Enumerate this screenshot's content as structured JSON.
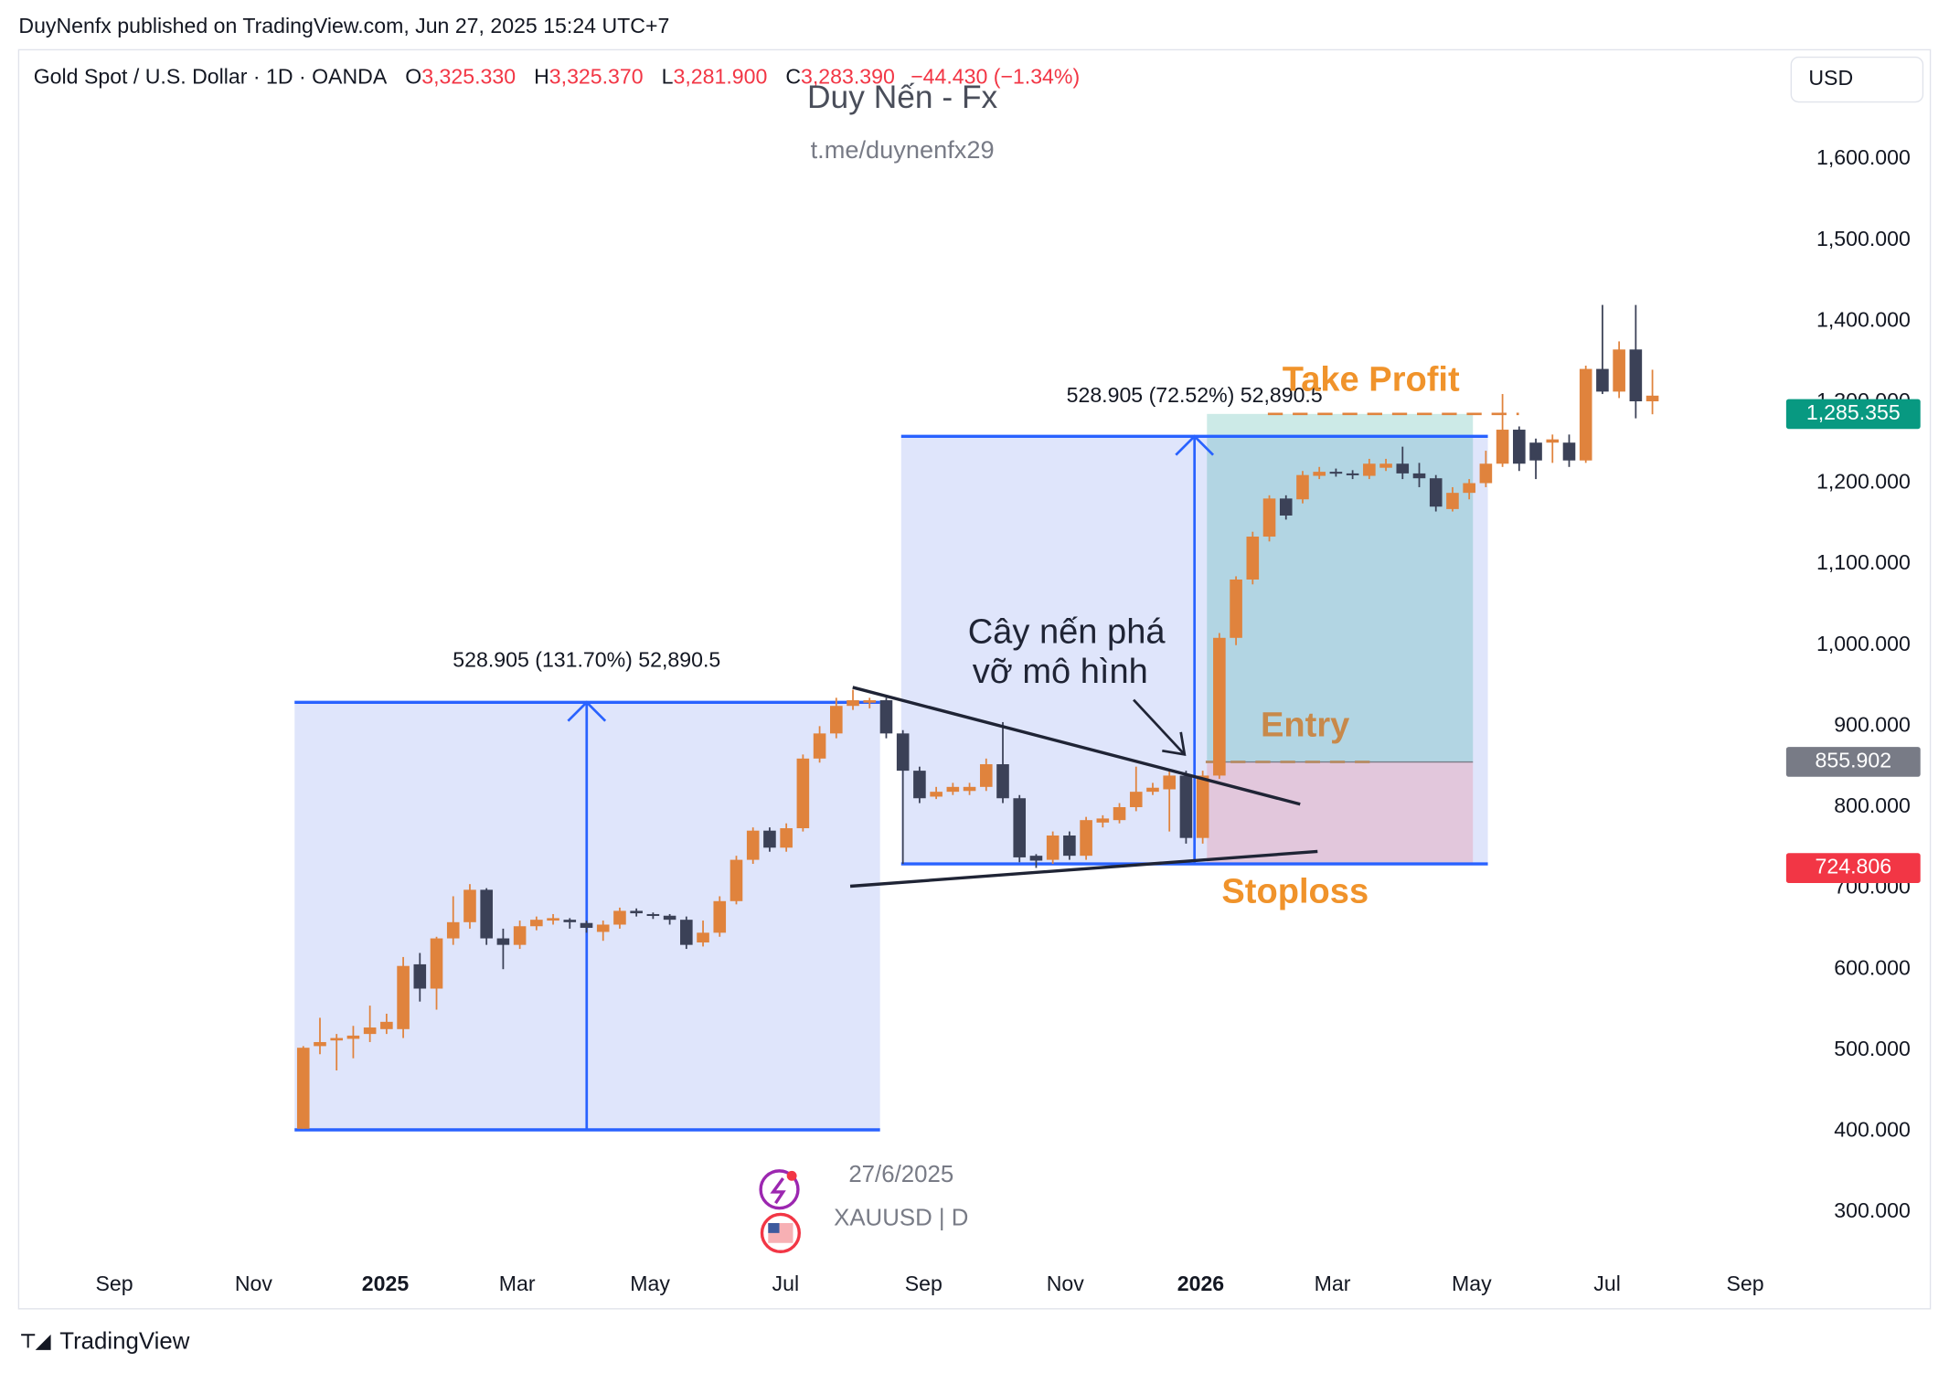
{
  "header": {
    "published": "DuyNenfx published on TradingView.com, Jun 27, 2025 15:24 UTC+7"
  },
  "chart_data": {
    "type": "candlestick",
    "symbol": "Gold Spot / U.S. Dollar · 1D · OANDA",
    "ohlc_legend": [
      {
        "key": "O",
        "value": "3,325.330"
      },
      {
        "key": "H",
        "value": "3,325.370"
      },
      {
        "key": "L",
        "value": "3,281.900"
      },
      {
        "key": "C",
        "value": "3,283.390"
      }
    ],
    "change": "−44.430 (−1.34%)",
    "watermark": {
      "title": "Duy Nến - Fx",
      "subtitle": "t.me/duynenfx29"
    },
    "currency": "USD",
    "x_axis_labels": [
      "Sep",
      "Nov",
      "2025",
      "Mar",
      "May",
      "Jul",
      "Sep",
      "Nov",
      "2026",
      "Mar",
      "May",
      "Jul",
      "Sep"
    ],
    "open": [
      403,
      505,
      512,
      514,
      520,
      526,
      526,
      606,
      576,
      638,
      658,
      698,
      638,
      630,
      653,
      660,
      661,
      657,
      646,
      655,
      672,
      668,
      666,
      661,
      633,
      645,
      684,
      735,
      771,
      750,
      774,
      860,
      891,
      925,
      929,
      932,
      891,
      845,
      813,
      819,
      820,
      825,
      853,
      811,
      740,
      735,
      765,
      740,
      781,
      784,
      800,
      819,
      822,
      839,
      762,
      839,
      1009,
      1081,
      1134,
      1181,
      1180,
      1209,
      1214,
      1212,
      1209,
      1219,
      1224,
      1212,
      1206,
      1168,
      1188,
      1200,
      1224,
      1266,
      1250,
      1250,
      1250,
      1228,
      1341,
      1313,
      1365,
      1301
    ],
    "high": [
      505,
      540,
      520,
      530,
      555,
      545,
      615,
      620,
      640,
      690,
      705,
      700,
      650,
      660,
      665,
      668,
      663,
      660,
      660,
      676,
      675,
      670,
      668,
      665,
      660,
      690,
      740,
      775,
      775,
      780,
      865,
      900,
      935,
      945,
      935,
      935,
      895,
      850,
      825,
      830,
      830,
      860,
      905,
      815,
      742,
      770,
      770,
      788,
      790,
      805,
      850,
      830,
      845,
      845,
      845,
      1015,
      1085,
      1140,
      1185,
      1185,
      1215,
      1220,
      1218,
      1216,
      1230,
      1230,
      1245,
      1225,
      1210,
      1195,
      1205,
      1240,
      1310,
      1270,
      1255,
      1260,
      1260,
      1345,
      1420,
      1375,
      1420,
      1340
    ],
    "low": [
      403,
      495,
      475,
      490,
      510,
      520,
      515,
      560,
      550,
      630,
      650,
      630,
      600,
      625,
      648,
      655,
      650,
      645,
      635,
      650,
      665,
      662,
      655,
      625,
      628,
      640,
      680,
      730,
      745,
      745,
      770,
      855,
      885,
      920,
      922,
      885,
      730,
      805,
      810,
      815,
      815,
      820,
      805,
      732,
      725,
      730,
      735,
      735,
      775,
      780,
      795,
      815,
      770,
      755,
      755,
      835,
      1000,
      1075,
      1128,
      1155,
      1175,
      1205,
      1208,
      1205,
      1205,
      1215,
      1205,
      1195,
      1165,
      1165,
      1180,
      1195,
      1220,
      1215,
      1205,
      1225,
      1220,
      1225,
      1310,
      1305,
      1280,
      1285
    ],
    "close": [
      503,
      510,
      515,
      518,
      528,
      535,
      604,
      576,
      638,
      658,
      698,
      638,
      630,
      653,
      661,
      663,
      658,
      651,
      655,
      672,
      669,
      666,
      661,
      630,
      645,
      684,
      735,
      771,
      750,
      774,
      860,
      891,
      925,
      932,
      932,
      891,
      845,
      811,
      819,
      825,
      825,
      853,
      811,
      738,
      734,
      765,
      740,
      784,
      786,
      800,
      819,
      824,
      839,
      762,
      839,
      1009,
      1081,
      1134,
      1181,
      1160,
      1210,
      1214,
      1212,
      1210,
      1224,
      1224,
      1212,
      1206,
      1171,
      1188,
      1200,
      1224,
      1266,
      1224,
      1228,
      1254,
      1228,
      1341,
      1313,
      1365,
      1301,
      1308
    ],
    "up_color": "#e0833d",
    "down_color": "#3b4157",
    "ylim": [
      239,
      1735
    ],
    "yticks": [
      {
        "value": 1600,
        "label": "1,600.000"
      },
      {
        "value": 1500,
        "label": "1,500.000"
      },
      {
        "value": 1400,
        "label": "1,400.000"
      },
      {
        "value": 1300,
        "label": "1,300.000"
      },
      {
        "value": 1200,
        "label": "1,200.000"
      },
      {
        "value": 1100,
        "label": "1,100.000"
      },
      {
        "value": 1000,
        "label": "1,000.000"
      },
      {
        "value": 900,
        "label": "900.000"
      },
      {
        "value": 800,
        "label": "800.000"
      },
      {
        "value": 700,
        "label": "700.000"
      },
      {
        "value": 600,
        "label": "600.000"
      },
      {
        "value": 500,
        "label": "500.000"
      },
      {
        "value": 400,
        "label": "400.000"
      },
      {
        "value": 300,
        "label": "300.000"
      }
    ],
    "price_tags": [
      {
        "value": 1285.355,
        "label": "1,285.355",
        "color": "#089981"
      },
      {
        "value": 855.902,
        "label": "855.902",
        "color": "#787b86"
      },
      {
        "value": 724.806,
        "label": "724.806",
        "color": "#f23645"
      }
    ],
    "annotations": {
      "measure_1": "528.905 (131.70%) 52,890.5",
      "measure_2": "528.905 (72.52%) 52,890.5",
      "take_profit": "Take Profit",
      "entry": "Entry",
      "stoploss": "Stoploss",
      "note": [
        "Cây nến phá",
        "vỡ mô hình"
      ]
    },
    "footer": {
      "date": "27/6/2025",
      "symbol": "XAUUSD | D"
    }
  },
  "branding": "TradingView"
}
